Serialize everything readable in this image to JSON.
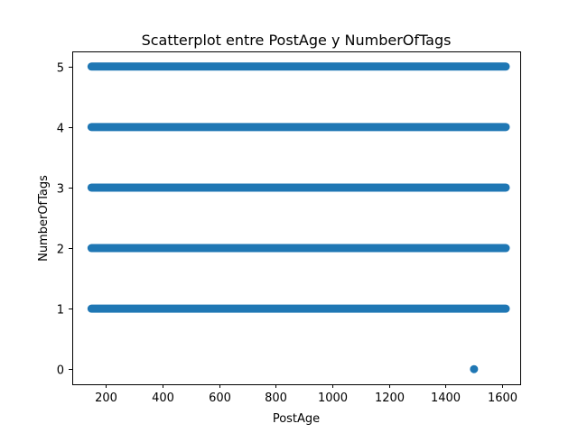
{
  "chart_data": {
    "type": "scatter",
    "title": "Scatterplot entre PostAge y NumberOfTags",
    "xlabel": "PostAge",
    "ylabel": "NumberOfTags",
    "xlim": [
      82,
      1663
    ],
    "ylim": [
      -0.25,
      5.25
    ],
    "xticks": [
      200,
      400,
      600,
      800,
      1000,
      1200,
      1400,
      1600
    ],
    "yticks": [
      0,
      1,
      2,
      3,
      4,
      5
    ],
    "grid": false,
    "marker_color": "#1f77b4",
    "series": [
      {
        "name": "",
        "dense_bands": [
          {
            "y": 5,
            "x_range": [
              150,
              1612
            ]
          },
          {
            "y": 4,
            "x_range": [
              150,
              1612
            ]
          },
          {
            "y": 3,
            "x_range": [
              150,
              1612
            ]
          },
          {
            "y": 2,
            "x_range": [
              150,
              1612
            ]
          },
          {
            "y": 1,
            "x_range": [
              150,
              1612
            ]
          }
        ],
        "points": [
          {
            "x": 1500,
            "y": 0
          }
        ]
      }
    ]
  }
}
